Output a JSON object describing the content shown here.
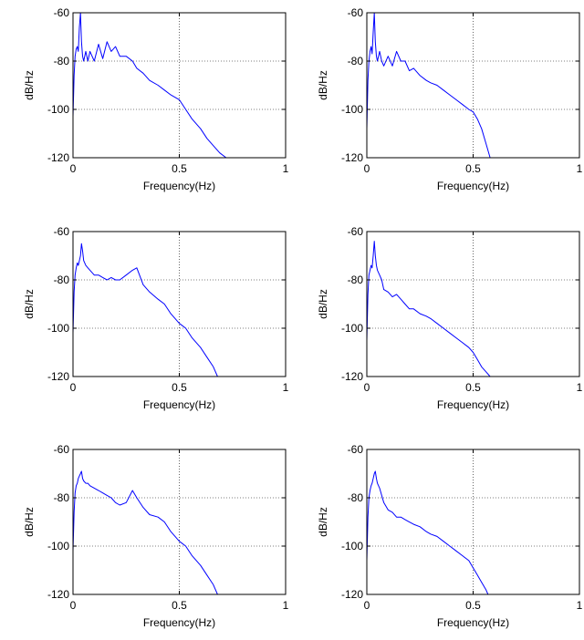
{
  "colors": {
    "line": "#0000ff",
    "axis": "#000000",
    "grid": "#000000",
    "background": "#ffffff"
  },
  "chart_data": [
    {
      "type": "line",
      "xlabel": "Frequency(Hz)",
      "ylabel": "dB/Hz",
      "xlim": [
        0,
        1
      ],
      "ylim": [
        -120,
        -60
      ],
      "xticks": [
        "0",
        "0.5",
        "1"
      ],
      "yticks": [
        "-60",
        "-80",
        "-100",
        "-120"
      ],
      "grid": true,
      "x": [
        0,
        0.005,
        0.01,
        0.015,
        0.02,
        0.025,
        0.03,
        0.035,
        0.04,
        0.045,
        0.05,
        0.06,
        0.07,
        0.08,
        0.1,
        0.12,
        0.14,
        0.16,
        0.18,
        0.2,
        0.22,
        0.25,
        0.28,
        0.3,
        0.33,
        0.36,
        0.4,
        0.43,
        0.46,
        0.5,
        0.53,
        0.56,
        0.6,
        0.63,
        0.66,
        0.69,
        0.72
      ],
      "values": [
        -103,
        -86,
        -78,
        -75,
        -74,
        -76,
        -66,
        -60,
        -72,
        -78,
        -80,
        -76,
        -80,
        -76,
        -80,
        -73,
        -79,
        -72,
        -76,
        -74,
        -78,
        -78,
        -80,
        -83,
        -85,
        -88,
        -90,
        -92,
        -94,
        -96,
        -100,
        -104,
        -108,
        -112,
        -115,
        -118,
        -120
      ]
    },
    {
      "type": "line",
      "xlabel": "Frequency(Hz)",
      "ylabel": "dB/Hz",
      "xlim": [
        0,
        1
      ],
      "ylim": [
        -120,
        -60
      ],
      "xticks": [
        "0",
        "0.5",
        "1"
      ],
      "yticks": [
        "-60",
        "-80",
        "-100",
        "-120"
      ],
      "grid": true,
      "x": [
        0,
        0.005,
        0.01,
        0.015,
        0.02,
        0.025,
        0.03,
        0.035,
        0.04,
        0.045,
        0.05,
        0.06,
        0.07,
        0.08,
        0.1,
        0.12,
        0.14,
        0.16,
        0.18,
        0.2,
        0.22,
        0.25,
        0.28,
        0.3,
        0.33,
        0.36,
        0.39,
        0.42,
        0.45,
        0.48,
        0.5,
        0.52,
        0.54,
        0.56,
        0.58
      ],
      "values": [
        -108,
        -88,
        -80,
        -76,
        -74,
        -77,
        -68,
        -60,
        -72,
        -78,
        -80,
        -76,
        -80,
        -82,
        -78,
        -82,
        -76,
        -80,
        -80,
        -84,
        -83,
        -86,
        -88,
        -89,
        -90,
        -92,
        -94,
        -96,
        -98,
        -100,
        -101,
        -104,
        -108,
        -114,
        -120
      ]
    },
    {
      "type": "line",
      "xlabel": "Frequency(Hz)",
      "ylabel": "dB/Hz",
      "xlim": [
        0,
        1
      ],
      "ylim": [
        -120,
        -60
      ],
      "xticks": [
        "0",
        "0.5",
        "1"
      ],
      "yticks": [
        "-60",
        "-80",
        "-100",
        "-120"
      ],
      "grid": true,
      "x": [
        0,
        0.005,
        0.01,
        0.015,
        0.02,
        0.025,
        0.03,
        0.035,
        0.04,
        0.045,
        0.05,
        0.06,
        0.07,
        0.08,
        0.1,
        0.12,
        0.14,
        0.16,
        0.18,
        0.2,
        0.22,
        0.25,
        0.28,
        0.3,
        0.33,
        0.36,
        0.4,
        0.43,
        0.46,
        0.5,
        0.53,
        0.56,
        0.6,
        0.63,
        0.66,
        0.68
      ],
      "values": [
        -102,
        -85,
        -78,
        -75,
        -73,
        -74,
        -72,
        -70,
        -65,
        -68,
        -72,
        -74,
        -75,
        -76,
        -78,
        -78,
        -79,
        -80,
        -79,
        -80,
        -80,
        -78,
        -76,
        -75,
        -82,
        -85,
        -88,
        -90,
        -94,
        -98,
        -100,
        -104,
        -108,
        -112,
        -116,
        -120
      ]
    },
    {
      "type": "line",
      "xlabel": "Frequency(Hz)",
      "ylabel": "dB/Hz",
      "xlim": [
        0,
        1
      ],
      "ylim": [
        -120,
        -60
      ],
      "xticks": [
        "0",
        "0.5",
        "1"
      ],
      "yticks": [
        "-60",
        "-80",
        "-100",
        "-120"
      ],
      "grid": true,
      "x": [
        0,
        0.005,
        0.01,
        0.015,
        0.02,
        0.025,
        0.03,
        0.035,
        0.04,
        0.045,
        0.05,
        0.06,
        0.07,
        0.08,
        0.1,
        0.12,
        0.14,
        0.16,
        0.18,
        0.2,
        0.22,
        0.25,
        0.28,
        0.3,
        0.33,
        0.36,
        0.39,
        0.42,
        0.45,
        0.48,
        0.5,
        0.52,
        0.54,
        0.56,
        0.58
      ],
      "values": [
        -105,
        -86,
        -78,
        -76,
        -74,
        -75,
        -70,
        -64,
        -70,
        -74,
        -76,
        -78,
        -80,
        -84,
        -85,
        -87,
        -86,
        -88,
        -90,
        -92,
        -92,
        -94,
        -95,
        -96,
        -98,
        -100,
        -102,
        -104,
        -106,
        -108,
        -110,
        -113,
        -116,
        -118,
        -120
      ]
    },
    {
      "type": "line",
      "xlabel": "Frequency(Hz)",
      "ylabel": "dB/Hz",
      "xlim": [
        0,
        1
      ],
      "ylim": [
        -120,
        -60
      ],
      "xticks": [
        "0",
        "0.5",
        "1"
      ],
      "yticks": [
        "-60",
        "-80",
        "-100",
        "-120"
      ],
      "grid": true,
      "x": [
        0,
        0.005,
        0.01,
        0.015,
        0.02,
        0.025,
        0.03,
        0.035,
        0.04,
        0.045,
        0.05,
        0.06,
        0.07,
        0.08,
        0.1,
        0.12,
        0.14,
        0.16,
        0.18,
        0.2,
        0.22,
        0.25,
        0.28,
        0.3,
        0.33,
        0.36,
        0.4,
        0.43,
        0.46,
        0.5,
        0.53,
        0.56,
        0.6,
        0.63,
        0.66,
        0.68
      ],
      "values": [
        -102,
        -86,
        -78,
        -75,
        -74,
        -72,
        -71,
        -70,
        -69,
        -72,
        -73,
        -74,
        -74,
        -75,
        -76,
        -77,
        -78,
        -79,
        -80,
        -82,
        -83,
        -82,
        -77,
        -80,
        -84,
        -87,
        -88,
        -90,
        -94,
        -98,
        -100,
        -104,
        -108,
        -112,
        -116,
        -120
      ]
    },
    {
      "type": "line",
      "xlabel": "Frequency(Hz)",
      "ylabel": "dB/Hz",
      "xlim": [
        0,
        1
      ],
      "ylim": [
        -120,
        -60
      ],
      "xticks": [
        "0",
        "0.5",
        "1"
      ],
      "yticks": [
        "-60",
        "-80",
        "-100",
        "-120"
      ],
      "grid": true,
      "x": [
        0,
        0.005,
        0.01,
        0.015,
        0.02,
        0.025,
        0.03,
        0.035,
        0.04,
        0.045,
        0.05,
        0.06,
        0.07,
        0.08,
        0.1,
        0.12,
        0.14,
        0.16,
        0.18,
        0.2,
        0.22,
        0.25,
        0.28,
        0.3,
        0.33,
        0.36,
        0.39,
        0.42,
        0.45,
        0.48,
        0.5,
        0.52,
        0.54,
        0.56,
        0.57
      ],
      "values": [
        -106,
        -88,
        -80,
        -77,
        -75,
        -74,
        -72,
        -70,
        -69,
        -72,
        -74,
        -76,
        -79,
        -82,
        -85,
        -86,
        -88,
        -88,
        -89,
        -90,
        -91,
        -92,
        -94,
        -95,
        -96,
        -98,
        -100,
        -102,
        -104,
        -106,
        -109,
        -112,
        -115,
        -118,
        -120
      ]
    }
  ]
}
